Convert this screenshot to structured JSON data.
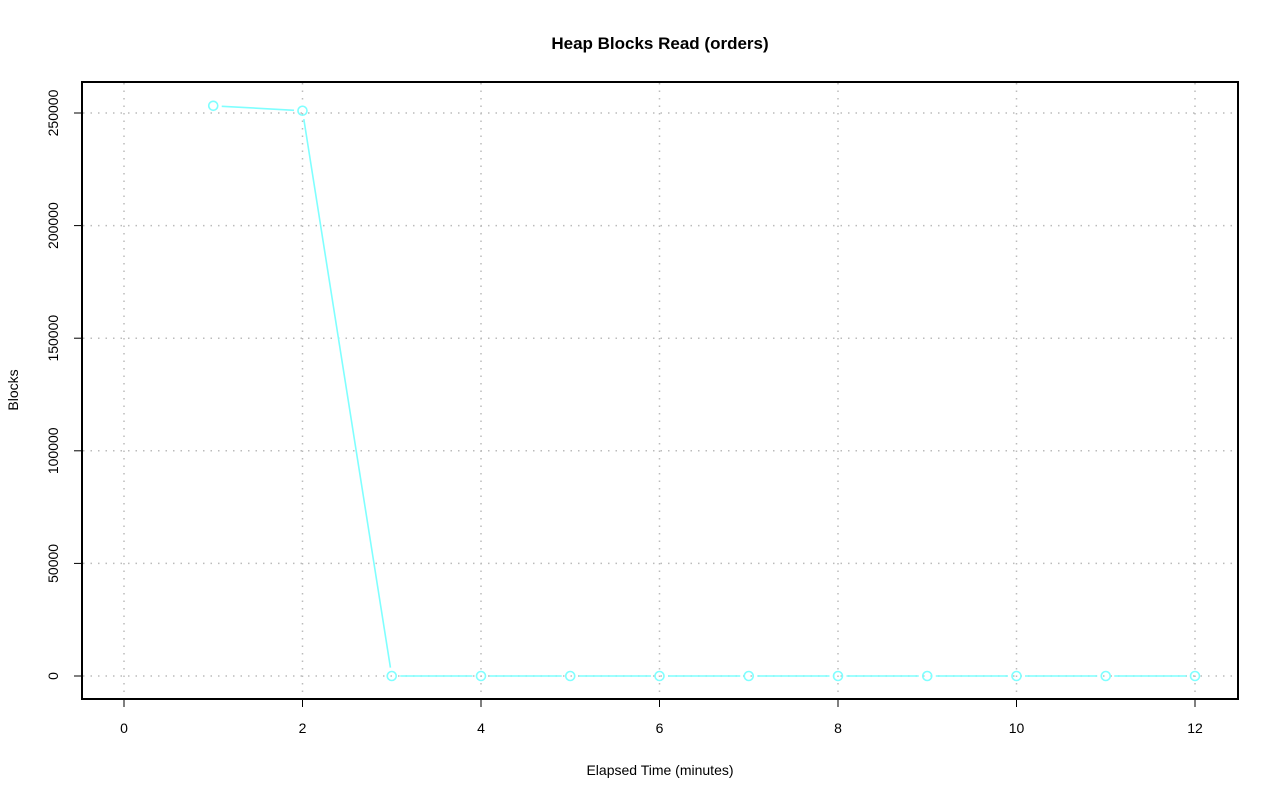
{
  "chart_data": {
    "type": "line",
    "title": "Heap Blocks Read (orders)",
    "xlabel": "Elapsed Time (minutes)",
    "ylabel": "Blocks",
    "xlim": [
      0,
      12
    ],
    "ylim": [
      0,
      250000
    ],
    "x_ticks": [
      0,
      2,
      4,
      6,
      8,
      10,
      12
    ],
    "y_ticks": [
      0,
      50000,
      100000,
      150000,
      200000,
      250000
    ],
    "grid": true,
    "series": [
      {
        "color": "#7fffff",
        "marker": "open-circle",
        "x": [
          1,
          2,
          3,
          4,
          5,
          6,
          7,
          8,
          9,
          10,
          11,
          12
        ],
        "y": [
          253200,
          251000,
          0,
          0,
          0,
          0,
          0,
          0,
          0,
          0,
          0,
          0
        ]
      }
    ]
  }
}
